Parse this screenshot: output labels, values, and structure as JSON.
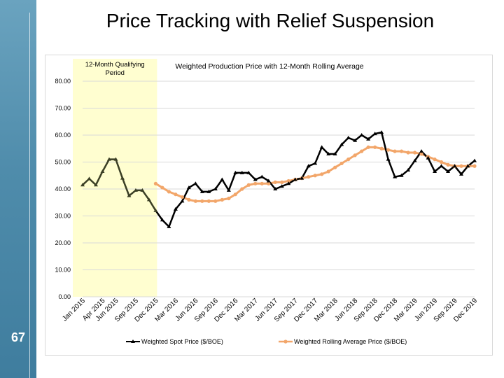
{
  "slide": {
    "title": "Price Tracking with Relief Suspension",
    "page_number": "67"
  },
  "colors": {
    "spot": "#000000",
    "qualifying_spot": "#3b3f25",
    "rolling": "#f2a66a",
    "qualifying_band": "#fffed0",
    "gridline": "#d9d9d9"
  },
  "chart_data": {
    "type": "line",
    "title": "Weighted Production Price with 12-Month Rolling Average",
    "annotation": "12-Month Qualifying Period",
    "qualifying_period": [
      "Jan 2015",
      "Dec 2015"
    ],
    "y_ticks": [
      "0.00",
      "10.00",
      "20.00",
      "30.00",
      "40.00",
      "50.00",
      "60.00",
      "70.00",
      "80.00"
    ],
    "ylim": [
      0,
      80
    ],
    "x_tick_labels": [
      "Jan 2015",
      "Apr 2015",
      "Jun 2015",
      "Sep 2015",
      "Dec 2015",
      "Mar 2016",
      "Jun 2016",
      "Sep 2016",
      "Dec 2016",
      "Mar 2017",
      "Jun 2017",
      "Sep 2017",
      "Dec 2017",
      "Mar 2018",
      "Jun 2018",
      "Sep 2018",
      "Dec 2018",
      "Mar 2019",
      "Jun 2019",
      "Sep 2019",
      "Dec 2019"
    ],
    "x_tick_month_index": [
      0,
      3,
      5,
      8,
      11,
      14,
      17,
      20,
      23,
      26,
      29,
      32,
      35,
      38,
      41,
      44,
      47,
      50,
      53,
      56,
      59
    ],
    "months": [
      "Jan 2015",
      "Feb 2015",
      "Mar 2015",
      "Apr 2015",
      "May 2015",
      "Jun 2015",
      "Jul 2015",
      "Aug 2015",
      "Sep 2015",
      "Oct 2015",
      "Nov 2015",
      "Dec 2015",
      "Jan 2016",
      "Feb 2016",
      "Mar 2016",
      "Apr 2016",
      "May 2016",
      "Jun 2016",
      "Jul 2016",
      "Aug 2016",
      "Sep 2016",
      "Oct 2016",
      "Nov 2016",
      "Dec 2016",
      "Jan 2017",
      "Feb 2017",
      "Mar 2017",
      "Apr 2017",
      "May 2017",
      "Jun 2017",
      "Jul 2017",
      "Aug 2017",
      "Sep 2017",
      "Oct 2017",
      "Nov 2017",
      "Dec 2017",
      "Jan 2018",
      "Feb 2018",
      "Mar 2018",
      "Apr 2018",
      "May 2018",
      "Jun 2018",
      "Jul 2018",
      "Aug 2018",
      "Sep 2018",
      "Oct 2018",
      "Nov 2018",
      "Dec 2018",
      "Jan 2019",
      "Feb 2019",
      "Mar 2019",
      "Apr 2019",
      "May 2019",
      "Jun 2019",
      "Jul 2019",
      "Aug 2019",
      "Sep 2019",
      "Oct 2019",
      "Nov 2019",
      "Dec 2019"
    ],
    "series": [
      {
        "name": "Weighted Spot Price ($/BOE)",
        "values": [
          41.5,
          43.8,
          41.5,
          46.5,
          51.0,
          51.0,
          44.0,
          37.5,
          39.5,
          39.5,
          36.0,
          32.0,
          28.5,
          26.0,
          32.5,
          35.5,
          40.5,
          42.0,
          39.0,
          39.0,
          40.0,
          43.5,
          39.5,
          46.0,
          46.0,
          46.0,
          43.5,
          44.5,
          43.0,
          40.0,
          41.0,
          42.0,
          43.5,
          44.0,
          48.5,
          49.5,
          55.5,
          53.0,
          53.0,
          56.5,
          59.0,
          58.0,
          60.0,
          58.5,
          60.5,
          61.0,
          51.0,
          44.5,
          45.0,
          47.0,
          50.5,
          54.0,
          51.5,
          46.5,
          48.5,
          46.5,
          48.5,
          45.5,
          48.5,
          50.5
        ]
      },
      {
        "name": "Weighted Rolling Average Price ($/BOE)",
        "start_index": 11,
        "values": [
          42.0,
          40.5,
          39.0,
          38.0,
          37.0,
          36.0,
          35.5,
          35.5,
          35.5,
          35.5,
          36.0,
          36.5,
          38.0,
          40.0,
          41.5,
          42.0,
          42.0,
          42.0,
          42.5,
          42.5,
          43.0,
          43.5,
          44.0,
          44.5,
          45.0,
          45.5,
          46.5,
          48.0,
          49.5,
          51.0,
          52.5,
          54.0,
          55.5,
          55.5,
          55.0,
          54.5,
          54.0,
          54.0,
          53.5,
          53.5,
          53.0,
          52.0,
          51.0,
          50.0,
          49.0,
          48.5,
          48.5,
          48.5,
          48.5
        ]
      }
    ],
    "legend": {
      "position": "bottom",
      "spot_label": "Weighted Spot Price ($/BOE)",
      "rolling_label": "Weighted Rolling Average Price ($/BOE)"
    },
    "xlabel": "",
    "ylabel": ""
  }
}
